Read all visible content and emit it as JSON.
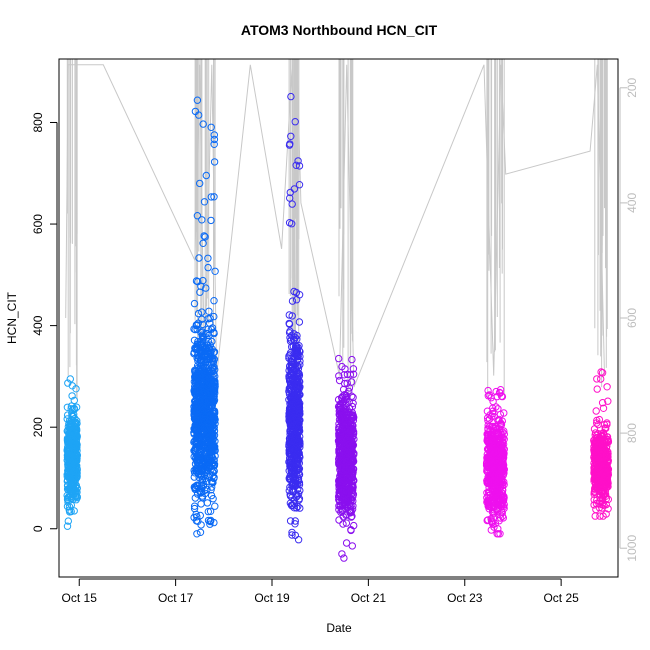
{
  "chart_data": {
    "type": "scatter",
    "title": "ATOM3 Northbound HCN_CIT",
    "xlabel": "Date",
    "ylabel": "HCN_CIT",
    "x_ticks": [
      "Oct 15",
      "Oct 17",
      "Oct 19",
      "Oct 21",
      "Oct 23",
      "Oct 25"
    ],
    "y_ticks": [
      0,
      200,
      400,
      600,
      800
    ],
    "y_tick_labels": [
      "0",
      "200",
      "400",
      "600",
      "800"
    ],
    "xlim": [
      14.58,
      26.18
    ],
    "ylim": [
      -95,
      925
    ],
    "right_axis": {
      "color": "#bdbdbd",
      "reversed": true,
      "ticks": [
        200,
        400,
        600,
        800,
        1000
      ],
      "tick_labels": [
        "200",
        "400",
        "600",
        "800",
        "1000"
      ],
      "ylim": [
        1050,
        150
      ]
    },
    "grid": false,
    "series": [
      {
        "color": "#1ea4f5",
        "x_range": [
          14.75,
          14.96
        ],
        "y_center": 140,
        "y_spread": 45,
        "y_min": 5,
        "y_max": 300,
        "count": 420
      },
      {
        "color": "#0a6af5",
        "x_range": [
          17.38,
          17.82
        ],
        "y_center": 230,
        "y_spread": 80,
        "y_min": -10,
        "y_max": 855,
        "count": 900
      },
      {
        "color": "#3a2cf0",
        "x_range": [
          19.35,
          19.58
        ],
        "y_center": 210,
        "y_spread": 80,
        "y_min": -25,
        "y_max": 885,
        "count": 600
      },
      {
        "color": "#8a10ee",
        "x_range": [
          20.38,
          20.7
        ],
        "y_center": 140,
        "y_spread": 60,
        "y_min": -60,
        "y_max": 335,
        "count": 620
      },
      {
        "color": "#ee10ee",
        "x_range": [
          23.45,
          23.82
        ],
        "y_center": 120,
        "y_spread": 50,
        "y_min": -10,
        "y_max": 275,
        "count": 560
      },
      {
        "color": "#ff10c8",
        "x_range": [
          25.68,
          25.98
        ],
        "y_center": 120,
        "y_spread": 35,
        "y_min": 25,
        "y_max": 315,
        "count": 420
      }
    ],
    "altitude_line": {
      "color": "#c8c8c8",
      "x": [
        14.72,
        14.77,
        14.8,
        14.85,
        15.5,
        17.4,
        17.5,
        17.6,
        17.75,
        17.85,
        18.55,
        19.2,
        19.42,
        19.48,
        19.52,
        19.6,
        20.4,
        20.55,
        20.7,
        23.4,
        23.6,
        23.75,
        23.85,
        25.6,
        25.75,
        25.9
      ],
      "y": [
        600,
        160,
        160,
        160,
        160,
        500,
        160,
        700,
        160,
        700,
        160,
        480,
        160,
        720,
        160,
        400,
        700,
        160,
        720,
        160,
        700,
        160,
        350,
        310,
        160,
        700
      ]
    }
  }
}
